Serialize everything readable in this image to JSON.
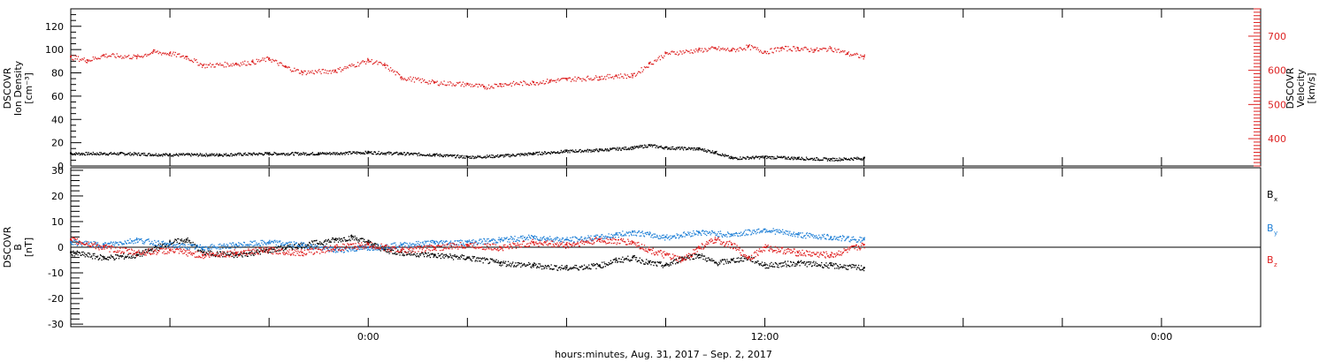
{
  "chart_data": [
    {
      "type": "scatter",
      "xlabel": "hours:minutes, Aug. 31, 2017 – Sep.  2, 2017",
      "x_tick_labels": [
        "0:00",
        "12:00",
        "0:00"
      ],
      "x_units": "hours since Aug. 31, 2017 00:00",
      "xlim": [
        -9,
        27
      ],
      "left_axis": {
        "label_lines": [
          "DSCOVR",
          "Ion Density",
          "[cm⁻³]"
        ],
        "ylim": [
          0,
          135
        ],
        "ticks": [
          "0",
          "20",
          "40",
          "60",
          "80",
          "100",
          "120"
        ],
        "color": "#000000"
      },
      "right_axis": {
        "label_lines": [
          "DSCOVR",
          "Velocity",
          "[km/s]"
        ],
        "ylim": [
          320,
          780
        ],
        "ticks": [
          "400",
          "500",
          "600",
          "700"
        ],
        "color": "#dd2222"
      },
      "series": [
        {
          "axis": "left",
          "color": "#000000",
          "x": [
            -9,
            -7.5,
            -6,
            -4.5,
            -3,
            -1.5,
            0,
            1,
            2,
            3,
            4,
            5,
            6,
            7,
            8,
            8.5,
            9,
            10,
            10.5,
            11,
            12,
            13,
            14,
            15
          ],
          "y": [
            11,
            11,
            10,
            10,
            11,
            11,
            12,
            11,
            10,
            8,
            9,
            11,
            13,
            14,
            16,
            18,
            16,
            15,
            12,
            7,
            8,
            7,
            6,
            7
          ]
        },
        {
          "axis": "right",
          "color": "#dd2222",
          "x": [
            -9,
            -8.5,
            -8,
            -7,
            -6.5,
            -6,
            -5.5,
            -5,
            -4,
            -3.5,
            -3,
            -2.5,
            -2,
            -1,
            0,
            0.5,
            1,
            2,
            3,
            3.5,
            4,
            5,
            5.5,
            6,
            7,
            7.5,
            8,
            8.5,
            9,
            10,
            10.5,
            11,
            11.5,
            12,
            12.5,
            13,
            13.5,
            14,
            14.5,
            15
          ],
          "y": [
            640,
            630,
            645,
            640,
            655,
            650,
            640,
            615,
            620,
            625,
            635,
            610,
            595,
            600,
            630,
            615,
            580,
            565,
            560,
            552,
            560,
            565,
            570,
            575,
            580,
            585,
            585,
            620,
            650,
            660,
            665,
            660,
            670,
            655,
            665,
            665,
            660,
            665,
            650,
            640
          ]
        }
      ]
    },
    {
      "type": "scatter",
      "ylabel_lines": [
        "DSCOVR",
        "B",
        "[nT]"
      ],
      "ylim": [
        -31,
        31
      ],
      "ticks": [
        "-30",
        "-20",
        "-10",
        "0",
        "10",
        "20",
        "30"
      ],
      "legend": [
        {
          "label": "B",
          "sub": "x",
          "color": "#000000"
        },
        {
          "label": "B",
          "sub": "y",
          "color": "#1e7fd6"
        },
        {
          "label": "B",
          "sub": "z",
          "color": "#e02020"
        }
      ],
      "series": [
        {
          "name": "Bx",
          "color": "#000000",
          "x": [
            -9,
            -8,
            -7,
            -6,
            -5.5,
            -5,
            -4,
            -3,
            -2,
            -1,
            -0.5,
            0,
            0.5,
            1,
            2,
            3,
            4,
            5,
            6,
            7,
            7.5,
            8,
            8.5,
            9,
            9.5,
            10,
            10.5,
            11,
            11.5,
            12,
            13,
            14,
            15
          ],
          "y": [
            -2,
            -4,
            -3,
            2,
            3,
            -2,
            -3,
            -1,
            1,
            3,
            4,
            2,
            -1,
            -2,
            -3,
            -4,
            -6,
            -7,
            -8,
            -7,
            -5,
            -4,
            -6,
            -7,
            -4,
            -3,
            -6,
            -5,
            -4,
            -7,
            -6,
            -7,
            -8
          ]
        },
        {
          "name": "By",
          "color": "#1e7fd6",
          "x": [
            -9,
            -8,
            -7,
            -6,
            -5,
            -4,
            -3,
            -2,
            -1,
            0,
            1,
            2,
            3,
            4,
            5,
            6,
            7,
            7.5,
            8,
            8.5,
            9,
            10,
            11,
            12,
            13,
            14,
            15
          ],
          "y": [
            2,
            1,
            3,
            1,
            0,
            1,
            2,
            1,
            -1,
            0,
            1,
            2,
            2,
            3,
            4,
            3,
            4,
            5,
            6,
            5,
            4,
            6,
            5,
            7,
            5,
            4,
            3
          ]
        },
        {
          "name": "Bz",
          "color": "#e02020",
          "x": [
            -9,
            -8,
            -7,
            -6,
            -5,
            -4,
            -3,
            -2,
            -1,
            0,
            1,
            2,
            3,
            4,
            5,
            6,
            7,
            8,
            8.5,
            9,
            9.5,
            10,
            10.5,
            11,
            11.5,
            12,
            13,
            14,
            15
          ],
          "y": [
            3,
            0,
            -2,
            -1,
            -3,
            -2,
            -1,
            -2,
            0,
            1,
            -1,
            0,
            1,
            0,
            2,
            1,
            3,
            2,
            -1,
            -3,
            -5,
            0,
            3,
            1,
            -4,
            0,
            -2,
            -3,
            1
          ]
        }
      ]
    }
  ]
}
